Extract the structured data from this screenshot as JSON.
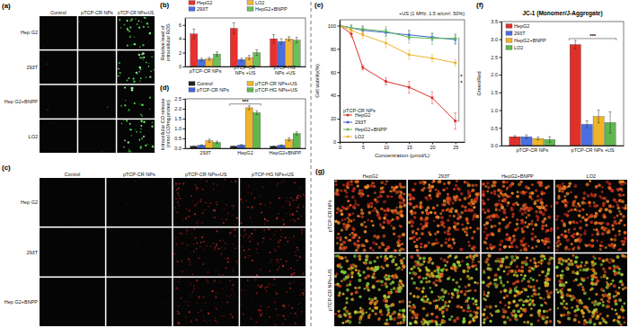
{
  "chart_data": [
    {
      "type": "bar",
      "title": "(b)",
      "y_label": "Relative level of intracellular ROS",
      "categories": [
        "pTCP-CR NPs",
        "pTCP-CR NPs +US",
        "pTCP-HG NPs +US"
      ],
      "series": [
        {
          "name": "HepG2",
          "color": "#e8312f",
          "values": [
            4.7,
            5.5,
            4.0
          ],
          "errors": [
            0.7,
            0.8,
            0.6
          ]
        },
        {
          "name": "293T",
          "color": "#4a6fe3",
          "values": [
            1.0,
            1.0,
            3.6
          ],
          "errors": [
            0.2,
            0.2,
            0.4
          ]
        },
        {
          "name": "LO2",
          "color": "#f2b538",
          "values": [
            1.1,
            1.3,
            4.0
          ],
          "errors": [
            0.2,
            0.3,
            0.3
          ]
        },
        {
          "name": "HepG2+BNPP",
          "color": "#6cbf5a",
          "values": [
            1.8,
            2.0,
            3.8
          ],
          "errors": [
            0.3,
            0.4,
            0.4
          ]
        }
      ],
      "ylim": [
        0,
        7
      ],
      "yticks": [
        0,
        2,
        4,
        6
      ],
      "legend": "top"
    },
    {
      "type": "bar",
      "title": "(d)",
      "y_label": "Intracellular CO release (nmol CO/mg protein)",
      "categories": [
        "293T",
        "HepG2",
        "HepG2+BNPP"
      ],
      "series": [
        {
          "name": "Control",
          "color": "#222222",
          "values": [
            0.1,
            0.1,
            0.1
          ],
          "errors": [
            0.02,
            0.02,
            0.02
          ]
        },
        {
          "name": "pTCP-CR NPs",
          "color": "#3d63d8",
          "values": [
            0.15,
            0.16,
            0.15
          ],
          "errors": [
            0.03,
            0.03,
            0.03
          ]
        },
        {
          "name": "pTCP-CR NPs+US",
          "color": "#f0b429",
          "values": [
            0.38,
            2.05,
            0.45
          ],
          "errors": [
            0.08,
            0.1,
            0.08
          ]
        },
        {
          "name": "pTCP-HG NPs+US",
          "color": "#5fb84e",
          "values": [
            0.3,
            1.8,
            0.75
          ],
          "errors": [
            0.06,
            0.1,
            0.08
          ]
        }
      ],
      "ylim": [
        0,
        2.5
      ],
      "yticks": [
        {
          "value": 0,
          "label": "0.0"
        },
        0.5,
        {
          "value": 1,
          "label": "1.0"
        },
        1.5,
        {
          "value": 2,
          "label": "2.0"
        },
        2.5
      ],
      "legend": "top",
      "annotations": [
        "***"
      ]
    },
    {
      "type": "line",
      "title": "(e)",
      "x_label": "Concentration (μmol/L)",
      "y_label": "Cell viability(%)",
      "x": [
        0,
        2.5,
        5,
        10,
        15,
        20,
        25
      ],
      "series": [
        {
          "name": "HepG2",
          "color": "#e0302a",
          "values": [
            100,
            93,
            64,
            52,
            47,
            38,
            18
          ],
          "errors": [
            0,
            3,
            2,
            3,
            5,
            5,
            7
          ]
        },
        {
          "name": "293T",
          "color": "#3d63d8",
          "values": [
            100,
            98,
            96,
            94,
            92,
            90,
            88
          ],
          "errors": [
            0,
            2,
            3,
            3,
            4,
            3,
            4
          ]
        },
        {
          "name": "HepG2+BNPP",
          "color": "#5fb84e",
          "values": [
            100,
            98,
            97,
            95,
            90,
            89,
            89
          ],
          "errors": [
            0,
            3,
            3,
            4,
            5,
            5,
            4
          ]
        },
        {
          "name": "LO2",
          "color": "#f0b429",
          "values": [
            100,
            96,
            92,
            85,
            75,
            72,
            68
          ],
          "errors": [
            0,
            2,
            3,
            4,
            4,
            3,
            3
          ]
        }
      ],
      "xlim": [
        0,
        27
      ],
      "xticks": [
        0,
        5,
        10,
        15,
        20,
        25
      ],
      "ylim": [
        0,
        105
      ],
      "yticks": [
        0,
        20,
        40,
        60,
        80,
        100
      ],
      "marker": "circle",
      "legend": "bottom-left",
      "annotations": [
        "+US (1 MHz, 1.5 w/cm², 50%)",
        "pTCP-CR NPs",
        "*",
        "*"
      ]
    },
    {
      "type": "bar",
      "title": "(f)",
      "subtitle": "JC-1 (Monomer/J-Aggregate)",
      "y_label": "Green/Red",
      "categories": [
        "pTCP-CR NPs",
        "pTCP-CR NPs +US"
      ],
      "series": [
        {
          "name": "HepG2",
          "color": "#e0302a",
          "values": [
            0.25,
            2.85
          ],
          "errors": [
            0.03,
            0.12
          ]
        },
        {
          "name": "293T",
          "color": "#4a6fe3",
          "values": [
            0.25,
            0.6
          ],
          "errors": [
            0.05,
            0.1
          ]
        },
        {
          "name": "HepG2+BNPP",
          "color": "#f0b429",
          "values": [
            0.2,
            0.82
          ],
          "errors": [
            0.04,
            0.18
          ]
        },
        {
          "name": "LO2",
          "color": "#5fb84e",
          "values": [
            0.17,
            0.65
          ],
          "errors": [
            0.08,
            0.3
          ]
        }
      ],
      "ylim": [
        0,
        3.5
      ],
      "yticks": [
        {
          "value": 0,
          "label": "0.0"
        },
        0.5,
        {
          "value": 1,
          "label": "1.0"
        },
        1.5,
        {
          "value": 2,
          "label": "2.0"
        },
        2.5,
        {
          "value": 3,
          "label": "3.0"
        },
        3.5
      ],
      "legend": "top-left",
      "annotations": [
        "***"
      ]
    }
  ],
  "image_panels": [
    {
      "label": "(a)",
      "columns": [
        "Control",
        "pTCP-CR NPs",
        "pTCP-CR NPs+US"
      ],
      "rows": [
        "Hep G2",
        "293T",
        "Hep G2+BNPP",
        "LO2"
      ]
    },
    {
      "label": "(c)",
      "columns": [
        "Control",
        "pTCP-CR NPs",
        "pTCP-CR NPs+US",
        "pTCP-HG NPs+US"
      ],
      "rows": [
        "Hep G2",
        "293T",
        "Hep G2+BNPP"
      ]
    },
    {
      "label": "(g)",
      "columns": [
        "HepG2",
        "293T",
        "HepG2+BNPP",
        "LO2"
      ],
      "rows": [
        "pTCP-CR NPs",
        "pTCP-CR NPs+US"
      ]
    }
  ]
}
